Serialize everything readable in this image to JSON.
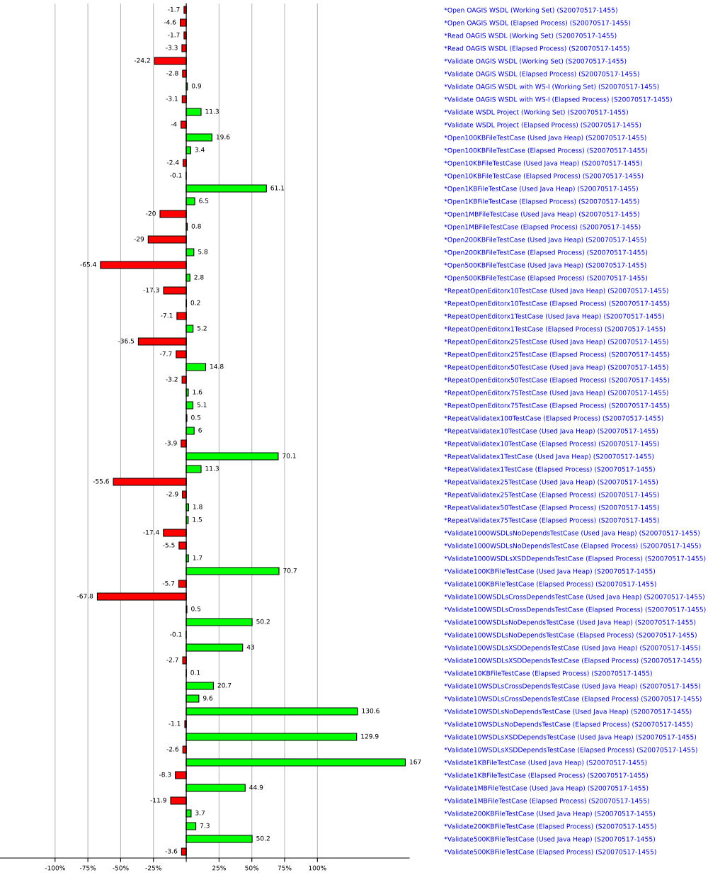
{
  "chart_data": {
    "type": "bar",
    "orientation": "horizontal",
    "categories": [
      "*Open OAGIS WSDL (Working Set) (S20070517-1455)",
      "*Open OAGIS WSDL (Elapsed Process) (S20070517-1455)",
      "*Read OAGIS WSDL (Working Set) (S20070517-1455)",
      "*Read OAGIS WSDL (Elapsed Process) (S20070517-1455)",
      "*Validate OAGIS WSDL (Working Set) (S20070517-1455)",
      "*Validate OAGIS WSDL (Elapsed Process) (S20070517-1455)",
      "*Validate OAGIS WSDL with WS-I (Working Set) (S20070517-1455)",
      "*Validate OAGIS WSDL with WS-I (Elapsed Process) (S20070517-1455)",
      "*Validate WSDL Project (Working Set) (S20070517-1455)",
      "*Validate WSDL Project (Elapsed Process) (S20070517-1455)",
      "*Open100KBFileTestCase (Used Java Heap) (S20070517-1455)",
      "*Open100KBFileTestCase (Elapsed Process) (S20070517-1455)",
      "*Open10KBFileTestCase (Used Java Heap) (S20070517-1455)",
      "*Open10KBFileTestCase (Elapsed Process) (S20070517-1455)",
      "*Open1KBFileTestCase (Used Java Heap) (S20070517-1455)",
      "*Open1KBFileTestCase (Elapsed Process) (S20070517-1455)",
      "*Open1MBFileTestCase (Used Java Heap) (S20070517-1455)",
      "*Open1MBFileTestCase (Elapsed Process) (S20070517-1455)",
      "*Open200KBFileTestCase (Used Java Heap) (S20070517-1455)",
      "*Open200KBFileTestCase (Elapsed Process) (S20070517-1455)",
      "*Open500KBFileTestCase (Used Java Heap) (S20070517-1455)",
      "*Open500KBFileTestCase (Elapsed Process) (S20070517-1455)",
      "*RepeatOpenEditorx10TestCase (Used Java Heap) (S20070517-1455)",
      "*RepeatOpenEditorx10TestCase (Elapsed Process) (S20070517-1455)",
      "*RepeatOpenEditorx1TestCase (Used Java Heap) (S20070517-1455)",
      "*RepeatOpenEditorx1TestCase (Elapsed Process) (S20070517-1455)",
      "*RepeatOpenEditorx25TestCase (Used Java Heap) (S20070517-1455)",
      "*RepeatOpenEditorx25TestCase (Elapsed Process) (S20070517-1455)",
      "*RepeatOpenEditorx50TestCase (Used Java Heap) (S20070517-1455)",
      "*RepeatOpenEditorx50TestCase (Elapsed Process) (S20070517-1455)",
      "*RepeatOpenEditorx75TestCase (Used Java Heap) (S20070517-1455)",
      "*RepeatOpenEditorx75TestCase (Elapsed Process) (S20070517-1455)",
      "*RepeatValidatex100TestCase (Elapsed Process) (S20070517-1455)",
      "*RepeatValidatex10TestCase (Used Java Heap) (S20070517-1455)",
      "*RepeatValidatex10TestCase (Elapsed Process) (S20070517-1455)",
      "*RepeatValidatex1TestCase (Used Java Heap) (S20070517-1455)",
      "*RepeatValidatex1TestCase (Elapsed Process) (S20070517-1455)",
      "*RepeatValidatex25TestCase (Used Java Heap) (S20070517-1455)",
      "*RepeatValidatex25TestCase (Elapsed Process) (S20070517-1455)",
      "*RepeatValidatex50TestCase (Elapsed Process) (S20070517-1455)",
      "*RepeatValidatex75TestCase (Elapsed Process) (S20070517-1455)",
      "*Validate1000WSDLsNoDependsTestCase (Used Java Heap) (S20070517-1455)",
      "*Validate1000WSDLsNoDependsTestCase (Elapsed Process) (S20070517-1455)",
      "*Validate1000WSDLsXSDDependsTestCase (Elapsed Process) (S20070517-1455)",
      "*Validate100KBFileTestCase (Used Java Heap) (S20070517-1455)",
      "*Validate100KBFileTestCase (Elapsed Process) (S20070517-1455)",
      "*Validate100WSDLsCrossDependsTestCase (Used Java Heap) (S20070517-1455)",
      "*Validate100WSDLsCrossDependsTestCase (Elapsed Process) (S20070517-1455)",
      "*Validate100WSDLsNoDependsTestCase (Used Java Heap) (S20070517-1455)",
      "*Validate100WSDLsNoDependsTestCase (Elapsed Process) (S20070517-1455)",
      "*Validate100WSDLsXSDDependsTestCase (Used Java Heap) (S20070517-1455)",
      "*Validate100WSDLsXSDDependsTestCase (Elapsed Process) (S20070517-1455)",
      "*Validate10KBFileTestCase (Elapsed Process) (S20070517-1455)",
      "*Validate10WSDLsCrossDependsTestCase (Used Java Heap) (S20070517-1455)",
      "*Validate10WSDLsCrossDependsTestCase (Elapsed Process) (S20070517-1455)",
      "*Validate10WSDLsNoDependsTestCase (Used Java Heap) (S20070517-1455)",
      "*Validate10WSDLsNoDependsTestCase (Elapsed Process) (S20070517-1455)",
      "*Validate10WSDLsXSDDependsTestCase (Used Java Heap) (S20070517-1455)",
      "*Validate10WSDLsXSDDependsTestCase (Elapsed Process) (S20070517-1455)",
      "*Validate1KBFileTestCase (Used Java Heap) (S20070517-1455)",
      "*Validate1KBFileTestCase (Elapsed Process) (S20070517-1455)",
      "*Validate1MBFileTestCase (Used Java Heap) (S20070517-1455)",
      "*Validate1MBFileTestCase (Elapsed Process) (S20070517-1455)",
      "*Validate200KBFileTestCase (Used Java Heap) (S20070517-1455)",
      "*Validate200KBFileTestCase (Elapsed Process) (S20070517-1455)",
      "*Validate500KBFileTestCase (Used Java Heap) (S20070517-1455)",
      "*Validate500KBFileTestCase (Elapsed Process) (S20070517-1455)"
    ],
    "values": [
      -1.7,
      -4.6,
      -1.7,
      -3.3,
      -24.2,
      -2.8,
      0.9,
      -3.1,
      11.3,
      -4,
      19.6,
      3.4,
      -2.4,
      -0.1,
      61.1,
      6.5,
      -20,
      0.8,
      -29,
      5.8,
      -65.4,
      2.8,
      -17.3,
      0.2,
      -7.1,
      5.2,
      -36.5,
      -7.7,
      14.8,
      -3.2,
      1.6,
      5.1,
      0.5,
      6,
      -3.9,
      70.1,
      11.3,
      -55.6,
      -2.9,
      1.8,
      1.5,
      -17.4,
      -5.5,
      1.7,
      70.7,
      -5.7,
      -67.8,
      0.5,
      50.2,
      -0.1,
      43,
      -2.7,
      0.1,
      20.7,
      9.6,
      130.6,
      -1.1,
      129.9,
      -2.6,
      167,
      -8.3,
      44.9,
      -11.9,
      3.7,
      7.3,
      50.2,
      -3.6
    ],
    "colors": [
      "#ff0000",
      "#ff0000",
      "#ff0000",
      "#ff0000",
      "#ff0000",
      "#ff0000",
      "#00ff00",
      "#ff0000",
      "#00ff00",
      "#ff0000",
      "#00ff00",
      "#00ff00",
      "#ff0000",
      "#ff0000",
      "#00ff00",
      "#00ff00",
      "#ff0000",
      "#00ff00",
      "#ff0000",
      "#00ff00",
      "#ff0000",
      "#00ff00",
      "#ff0000",
      "#00ff00",
      "#ff0000",
      "#00ff00",
      "#ff0000",
      "#ff0000",
      "#00ff00",
      "#ff0000",
      "#00ff00",
      "#00ff00",
      "#00ff00",
      "#00ff00",
      "#ff0000",
      "#00ff00",
      "#00ff00",
      "#ff0000",
      "#ff0000",
      "#00ff00",
      "#00ff00",
      "#ff0000",
      "#ff0000",
      "#00ff00",
      "#00ff00",
      "#ff0000",
      "#ff0000",
      "#00ff00",
      "#00ff00",
      "#ff0000",
      "#00ff00",
      "#ff0000",
      "#00ff00",
      "#00ff00",
      "#00ff00",
      "#00ff00",
      "#ff0000",
      "#00ff00",
      "#ff0000",
      "#00ff00",
      "#ff0000",
      "#00ff00",
      "#ff0000",
      "#00ff00",
      "#00ff00",
      "#00ff00",
      "#ff0000"
    ],
    "data_labels": true,
    "xlim": [
      -142,
      170
    ],
    "xticks": [
      {
        "value": -100,
        "label": "-100%"
      },
      {
        "value": -75,
        "label": "-75%"
      },
      {
        "value": -50,
        "label": "-50%"
      },
      {
        "value": -25,
        "label": "-25%"
      },
      {
        "value": 0,
        "label": null
      },
      {
        "value": 25,
        "label": "25%"
      },
      {
        "value": 50,
        "label": "50%"
      },
      {
        "value": 75,
        "label": "75%"
      },
      {
        "value": 100,
        "label": "100%"
      }
    ],
    "grid": "x",
    "legend": false
  }
}
